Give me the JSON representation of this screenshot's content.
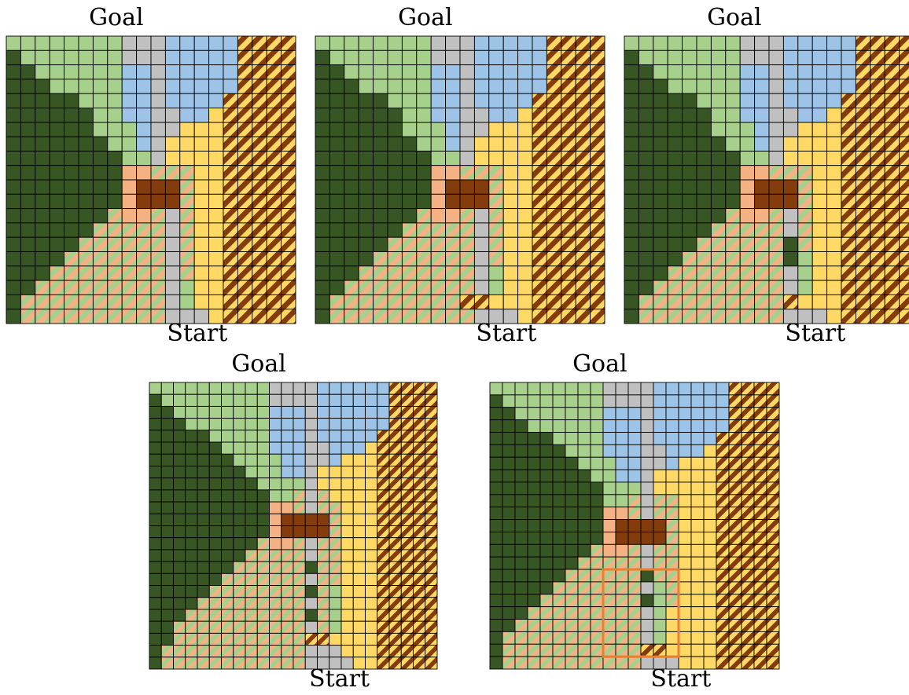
{
  "colors": {
    "G": "#a8d08d",
    "D": "#375623",
    "B": "#9dc3e6",
    "Y": "#ffd966",
    "K": "#c0c0c0",
    "R": "#843c0c",
    "S": "#f4b183",
    "grid_line": "#000000",
    "stripe_yb": [
      "#ffd966",
      "#843c0c"
    ],
    "stripe_sg": [
      "#f4b183",
      "#a8d08d"
    ],
    "highlight": "#ed7d31"
  },
  "cell_legend": {
    "G": "light-green",
    "D": "dark-green",
    "B": "light-blue",
    "Y": "yellow",
    "K": "gray",
    "R": "brown",
    "S": "salmon",
    "H": "yellow-brown-stripes",
    "P": "salmon-green-stripes"
  },
  "panels": [
    {
      "goal_label": "Goal",
      "start_label": "Start",
      "rows": [
        "GGGGGGGGKKKBBBBBHHHH",
        "DGGGGGGGKKKBBBBBHHHH",
        "DDGGGGGGBBKBBBBBHHHH",
        "DDDGGGGGBBKBBBBBHHHH",
        "DDDDDGGGBBKBBBBHHHHH",
        "DDDDDDGGBBKKBBYHHHHH",
        "DDDDDDGGGBKKYYYHHHHH",
        "DDDDDDDGGBKYYYYHHHHH",
        "DDDDDDDDGGKYYYYHHHHH",
        "DDDDDDDDSSPPPYYHHHHH",
        "DDDDDDDDSRRRPYYHHHHH",
        "DDDDDDDDSRRRPYYHHHHH",
        "DDDDDDDPSSPKPYYHHHHH",
        "DDDDDDPPPPPKPYYHHHHH",
        "DDDDDPPPPPPKPYYHHHHH",
        "DDDDPPPPPPPKPYYHHHHH",
        "DDDPPPPPPPPKPYYHHHHH",
        "DDPPPPPPPPPKGYYHHHHH",
        "DPPPPPPPPPPKGYYHHHHH",
        "DPPPPPPPPPPKKKYHHHHH"
      ]
    },
    {
      "goal_label": "Goal",
      "start_label": "Start",
      "rows": [
        "GGGGGGGGKKKBBBBBHHHH",
        "DGGGGGGGKKKBBBBBHHHH",
        "DDGGGGGGBBKBBBBBHHHH",
        "DDDGGGGGBBKBBBBBHHHH",
        "DDDDDGGGBBKBBBBHHHHH",
        "DDDDDDGGBBKKBBYHHHHH",
        "DDDDDDGGGBKKYYYHHHHH",
        "DDDDDDDGGBKYYYYHHHHH",
        "DDDDDDDDGGKYYYYHHHHH",
        "DDDDDDDDSSPPPYYHHHHH",
        "DDDDDDDDSRRRPYYHHHHH",
        "DDDDDDDDSRRRPYYHHHHH",
        "DDDDDDDPSSPKPYYHHHHH",
        "DDDDDDPPPPPKPYYHHHHH",
        "DDDDDPPPPPPKPYYHHHHH",
        "DDDDPPPPPPPKPYYHHHHH",
        "DDDPPPPPPPPKGYYHHHHH",
        "DDPPPPPPPPPKGYYHHHHH",
        "DPPPPPPPPPHHYYYHHHHH",
        "DPPPPPPPPPPKKKYHHHHH"
      ]
    },
    {
      "goal_label": "Goal",
      "start_label": "Start",
      "rows": [
        "GGGGGGGGKKKBBBBBHHHH",
        "DGGGGGGGKKKBBBBBHHHH",
        "DDGGGGGGBBKBBBBBHHHH",
        "DDDGGGGGBBKBBBBBHHHH",
        "DDDDDGGGBBKBBBBHHHHH",
        "DDDDDDGGBBKKBBYHHHHH",
        "DDDDDDGGGBKKYYYHHHHH",
        "DDDDDDDGGBKYYYYHHHHH",
        "DDDDDDDDGGKYYYYHHHHH",
        "DDDDDDDDSSPPPYYHHHHH",
        "DDDDDDDDSRRRPYYHHHHH",
        "DDDDDDDDSRRRPYYHHHHH",
        "DDDDDDDPSSPKPYYHHHHH",
        "DDDDDDPPPPPKPYYHHHHH",
        "DDDDDPPPPPPDPYYHHHHH",
        "DDDDPPPPPPPDGYYHHHHH",
        "DDDPPPPPPPPKGYYHHHHH",
        "DDPPPPPPPPPKGYYHHHHH",
        "DPPPPPPPPPPHYYYHHHHH",
        "DPPPPPPPPPPKKKYHHHHH"
      ]
    },
    {
      "goal_label": "Goal",
      "start_label": "Start",
      "rows": [
        "GGGGGGGGGGKKKKBBBBBBHHHH",
        "DGGGGGGGGGKKKKBBBBBBHHHH",
        "DDGGGGGGGGBBBKBBBBBBHHHH",
        "DDDGGGGGGGBBBKBBBBBBHHHH",
        "DDDDDGGGGGBBBKBBBBBHHHHH",
        "DDDDDDGGGGBBBKKBBBYHHHHH",
        "DDDDDDDGGGGBBKKBYYYHHHHH",
        "DDDDDDDDGGGBBKYYYYYHHHHH",
        "DDDDDDDDDGGGGKYYYYYHHHHH",
        "DDDDDDDDDDGGPKPYYYYHHHHH",
        "DDDDDDDDDDSSPKPPYYYHHHHH",
        "DDDDDDDDDDSRRRRPYYYHHHHH",
        "DDDDDDDDDDSRRRRPYYYHHHHH",
        "DDDDDDDDDPSSPKPPYYYHHHHH",
        "DDDDDDDDPPPPPKPPYYYHHHHH",
        "DDDDDDDPPPPPPDPPYYYHHHHH",
        "DDDDDDPPPPPPPKPPYYYHHHHH",
        "DDDDDPPPPPPPPDPGYYYHHHHH",
        "DDDDPPPPPPPPPKPGYYYHHHHH",
        "DDDPPPPPPPPPPDPGYYYHHHHH",
        "DDPPPPPPPPPPPKPGYYYHHHHH",
        "DDPPPPPPPPPPPHHYYYYHHHHH",
        "DPPPPPPPPPPPPKKKYYYHHHHH",
        "DPPPPPPPPPPPPKKKKYYHHHHH"
      ]
    },
    {
      "goal_label": "Goal",
      "start_label": "Start",
      "highlight": {
        "col": 9,
        "row": 15,
        "w": 6,
        "h": 7
      },
      "rows": [
        "GGGGGGGGGKKKKBBBBBBHHHH",
        "DGGGGGGGGKKKKBBBBBBHHHH",
        "DDGGGGGGGBBBKBBBBBBHHHH",
        "DDDGGGGGGBBBKBBBBBBHHHH",
        "DDDDDGGGGBBBKBBBBBHHHHH",
        "DDDDDDGGGBBBKKBBBYHHHHH",
        "DDDDDDDGGGBBKKBYYYHHHHH",
        "DDDDDDDDGGBBKYYYYYHHHHH",
        "DDDDDDDDDGGGKYYYYYHHHHH",
        "DDDDDDDDDGGPKPPYYYHHHHH",
        "DDDDDDDDDSSPKPPYYYHHHHH",
        "DDDDDDDDDSRRRRPYYYHHHHH",
        "DDDDDDDDDSRRRRPYYYHHHHH",
        "DDDDDDDDPSSPKPPYYYHHHHH",
        "DDDDDDDPPPPPKPPYYYHHHHH",
        "DDDDDDPPPPPPDPPYYYHHHHH",
        "DDDDDPPPPPPPKGPYYYHHHHH",
        "DDDDPPPPPPPPDGPYYYHHHHH",
        "DDDPPPPPPPPPKGYYYYHHHHH",
        "DDPPPPPPPPPPKGYYYYHHHHH",
        "DPPPPPPPPPPPKGYYYYHHHHH",
        "DPPPPPPPPPPPHHYYYYHHHHH",
        "DPPPPPPPPPPPKKKYYYHHHHH"
      ]
    }
  ]
}
